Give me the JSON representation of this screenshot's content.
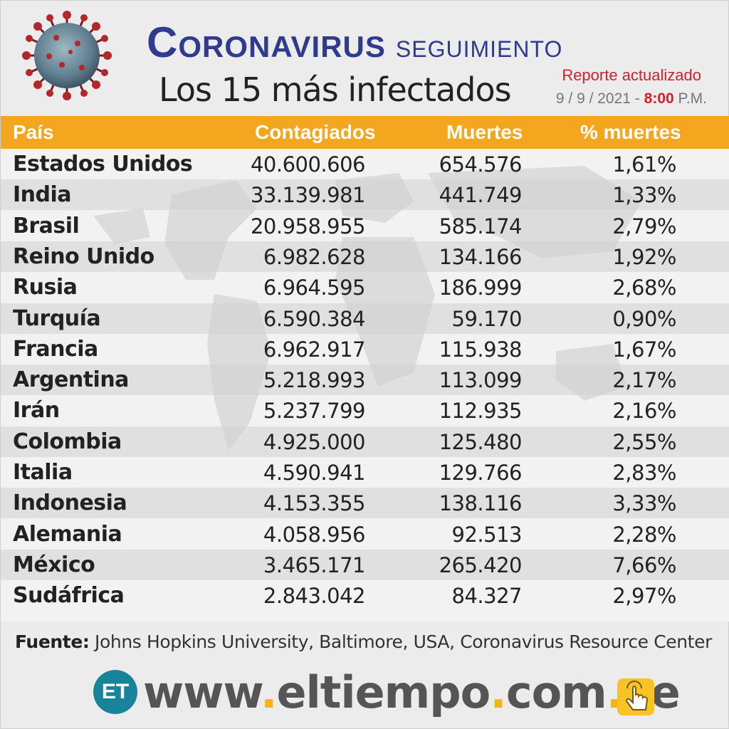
{
  "header": {
    "title_bold": "Coronavirus",
    "title_light": "seguimiento",
    "subtitle_prefix": "Los",
    "subtitle_number": "15",
    "subtitle_suffix": "más infectados",
    "report_label": "Reporte actualizado",
    "date": "9 / 9 / 2021 -",
    "time": "8:00",
    "ampm": "P.M."
  },
  "table": {
    "columns": [
      "País",
      "Contagiados",
      "Muertes",
      "% muertes"
    ],
    "rows": [
      {
        "country": "Estados Unidos",
        "cases": "40.600.606",
        "deaths": "654.576",
        "pct": "1,61%"
      },
      {
        "country": "India",
        "cases": "33.139.981",
        "deaths": "441.749",
        "pct": "1,33%"
      },
      {
        "country": "Brasil",
        "cases": "20.958.955",
        "deaths": "585.174",
        "pct": "2,79%"
      },
      {
        "country": "Reino Unido",
        "cases": "6.982.628",
        "deaths": "134.166",
        "pct": "1,92%"
      },
      {
        "country": "Rusia",
        "cases": "6.964.595",
        "deaths": "186.999",
        "pct": "2,68%"
      },
      {
        "country": "Turquía",
        "cases": "6.590.384",
        "deaths": "59.170",
        "pct": "0,90%"
      },
      {
        "country": "Francia",
        "cases": "6.962.917",
        "deaths": "115.938",
        "pct": "1,67%"
      },
      {
        "country": "Argentina",
        "cases": "5.218.993",
        "deaths": "113.099",
        "pct": "2,17%"
      },
      {
        "country": "Irán",
        "cases": "5.237.799",
        "deaths": "112.935",
        "pct": "2,16%"
      },
      {
        "country": "Colombia",
        "cases": "4.925.000",
        "deaths": "125.480",
        "pct": "2,55%"
      },
      {
        "country": "Italia",
        "cases": "4.590.941",
        "deaths": "129.766",
        "pct": "2,83%"
      },
      {
        "country": "Indonesia",
        "cases": "4.153.355",
        "deaths": "138.116",
        "pct": "3,33%"
      },
      {
        "country": "Alemania",
        "cases": "4.058.956",
        "deaths": "92.513",
        "pct": "2,28%"
      },
      {
        "country": "México",
        "cases": "3.465.171",
        "deaths": "265.420",
        "pct": "7,66%"
      },
      {
        "country": "Sudáfrica",
        "cases": "2.843.042",
        "deaths": "84.327",
        "pct": "2,97%"
      }
    ]
  },
  "source": {
    "label": "Fuente:",
    "text": "Johns Hopkins University, Baltimore, USA, Coronavirus Resource Center"
  },
  "footer": {
    "logo": "ET",
    "url_www": "www",
    "url_name": "eltiempo",
    "url_com": "com",
    "url_ve": "ve",
    "dot": "."
  },
  "colors": {
    "accent": "#f4a61f",
    "title_blue": "#2f3b8c",
    "red": "#d0202a",
    "logo_teal": "#17849a"
  },
  "icons": [
    "coronavirus-image",
    "click-hand-icon"
  ]
}
